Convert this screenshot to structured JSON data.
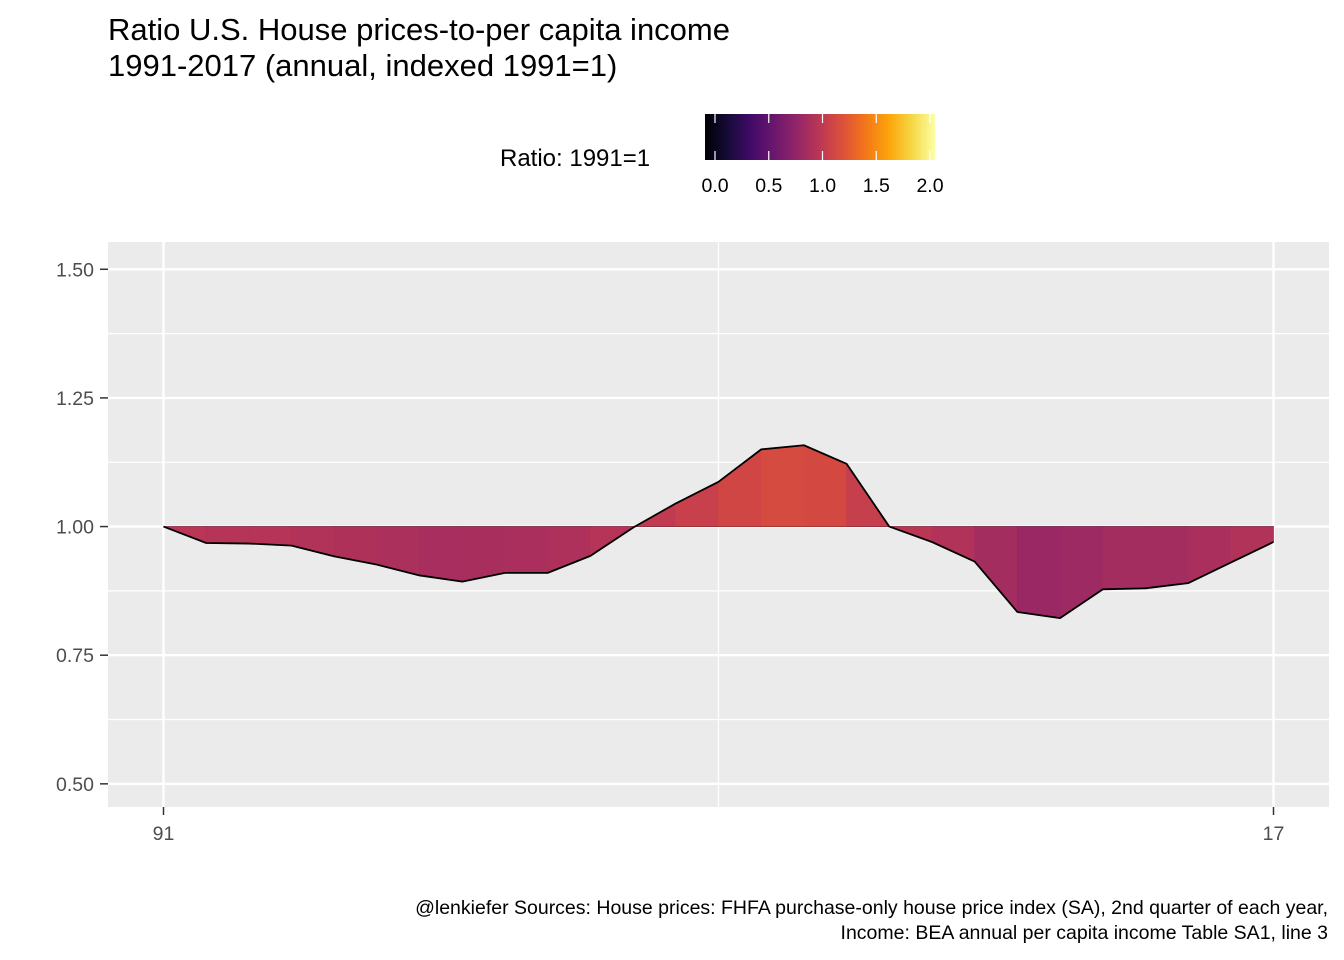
{
  "title": "Ratio U.S. House prices-to-per capita income",
  "subtitle": "1991-2017 (annual, indexed 1991=1)",
  "legend": {
    "title": "Ratio: 1991=1",
    "ticks": [
      "0.0",
      "0.5",
      "1.0",
      "1.5",
      "2.0"
    ],
    "limits": [
      0,
      2
    ],
    "palette": "inferno"
  },
  "caption": {
    "line1": "@lenkiefer Sources: House prices: FHFA purchase-only house price index (SA), 2nd quarter of each year,",
    "line2": "Income: BEA annual per capita income Table SA1, line 3"
  },
  "chart_data": {
    "type": "area",
    "baseline": 1.0,
    "x": [
      1991,
      1992,
      1993,
      1994,
      1995,
      1996,
      1997,
      1998,
      1999,
      2000,
      2001,
      2002,
      2003,
      2004,
      2005,
      2006,
      2007,
      2008,
      2009,
      2010,
      2011,
      2012,
      2013,
      2014,
      2015,
      2016,
      2017
    ],
    "values": [
      1.0,
      0.968,
      0.967,
      0.963,
      0.942,
      0.926,
      0.905,
      0.893,
      0.91,
      0.91,
      0.943,
      0.998,
      1.045,
      1.087,
      1.15,
      1.158,
      1.122,
      1.0,
      0.97,
      0.932,
      0.834,
      0.822,
      0.878,
      0.88,
      0.89,
      0.93,
      0.97
    ],
    "x_tick_labels": [
      "91",
      "17"
    ],
    "x_tick_values": [
      1991,
      2017
    ],
    "y_ticks": [
      "0.50",
      "0.75",
      "1.00",
      "1.25",
      "1.50"
    ],
    "y_tick_values": [
      0.5,
      0.75,
      1.0,
      1.25,
      1.5
    ],
    "ylim": [
      0.455,
      1.553
    ],
    "xlim": [
      1989.7,
      2018.3
    ],
    "grid": true,
    "legend_position": "top",
    "colors": {
      "panel": "#ebebeb",
      "grid": "#ffffff",
      "outline": "#000000",
      "axis_text": "#4d4d4d"
    }
  }
}
